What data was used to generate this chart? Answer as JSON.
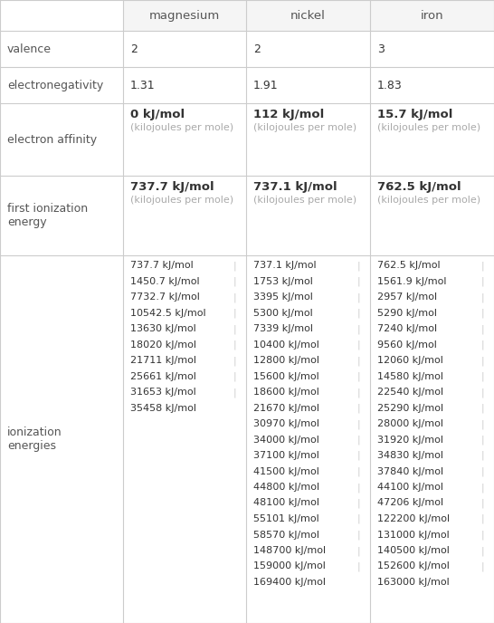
{
  "headers": [
    "",
    "magnesium",
    "nickel",
    "iron"
  ],
  "rows": [
    {
      "label": "valence",
      "values": [
        "2",
        "2",
        "3"
      ]
    },
    {
      "label": "electronegativity",
      "values": [
        "1.31",
        "1.91",
        "1.83"
      ]
    },
    {
      "label": "electron affinity",
      "values": [
        "0 kJ/mol\n(kilojoules per mole)",
        "112 kJ/mol\n(kilojoules per mole)",
        "15.7 kJ/mol\n(kilojoules per mole)"
      ]
    },
    {
      "label": "first ionization\nenergy",
      "values": [
        "737.7 kJ/mol\n(kilojoules per mole)",
        "737.1 kJ/mol\n(kilojoules per mole)",
        "762.5 kJ/mol\n(kilojoules per mole)"
      ]
    },
    {
      "label": "ionization\nenergies",
      "values": [
        "737.7 kJ/mol  |\n1450.7 kJ/mol  |\n7732.7 kJ/mol  |\n10542.5 kJ/mol  |\n13630 kJ/mol  |\n18020 kJ/mol  |\n21711 kJ/mol  |\n25661 kJ/mol  |\n31653 kJ/mol  |\n35458 kJ/mol",
        "737.1 kJ/mol  |\n1753 kJ/mol  |\n3395 kJ/mol  |\n5300 kJ/mol  |\n7339 kJ/mol  |\n10400 kJ/mol  |\n12800 kJ/mol  |\n15600 kJ/mol  |\n18600 kJ/mol  |\n21670 kJ/mol  |\n30970 kJ/mol  |\n34000 kJ/mol  |\n37100 kJ/mol  |\n41500 kJ/mol  |\n44800 kJ/mol  |\n48100 kJ/mol  |\n55101 kJ/mol  |\n58570 kJ/mol  |\n148700 kJ/mol  |\n159000 kJ/mol  |\n169400 kJ/mol",
        "762.5 kJ/mol  |\n1561.9 kJ/mol  |\n2957 kJ/mol  |\n5290 kJ/mol  |\n7240 kJ/mol  |\n9560 kJ/mol  |\n12060 kJ/mol  |\n14580 kJ/mol  |\n22540 kJ/mol  |\n25290 kJ/mol  |\n28000 kJ/mol  |\n31920 kJ/mol  |\n34830 kJ/mol  |\n37840 kJ/mol  |\n44100 kJ/mol  |\n47206 kJ/mol  |\n122200 kJ/mol  |\n131000 kJ/mol  |\n140500 kJ/mol  |\n152600 kJ/mol  |\n163000 kJ/mol"
      ]
    }
  ],
  "header_color": "#f5f5f5",
  "row_colors": [
    "#ffffff",
    "#f9f9f9"
  ],
  "grid_color": "#cccccc",
  "text_color_dark": "#333333",
  "text_color_light": "#999999",
  "header_text_color": "#555555",
  "label_color": "#555555",
  "value_main_color": "#333333",
  "value_sub_color": "#aaaaaa"
}
